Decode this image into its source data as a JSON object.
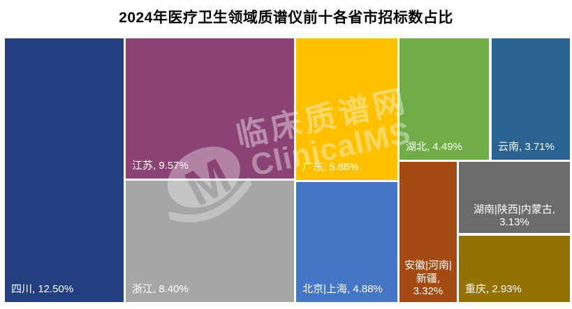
{
  "title": "2024年医疗卫生领域质谱仪前十各省市招标数占比",
  "watermark": {
    "logo_letter": "M",
    "text_cn": "临床质谱网",
    "text_en": "ClinicalMS"
  },
  "chart_data": {
    "type": "treemap",
    "title": "2024年医疗卫生领域质谱仪前十各省市招标数占比",
    "unit": "%",
    "legend_position": "none",
    "series": [
      {
        "name": "四川",
        "value": 12.5,
        "label": "四川, 12.50%",
        "color": "#224080"
      },
      {
        "name": "江苏",
        "value": 9.57,
        "label": "江苏, 9.57%",
        "color": "#8B4374"
      },
      {
        "name": "浙江",
        "value": 8.4,
        "label": "浙江, 8.40%",
        "color": "#A6A6A6"
      },
      {
        "name": "广东",
        "value": 5.86,
        "label": "广东, 5.86%",
        "color": "#FFC000"
      },
      {
        "name": "北京|上海",
        "value": 4.88,
        "label": "北京|上海, 4.88%",
        "color": "#4576C5"
      },
      {
        "name": "湖北",
        "value": 4.49,
        "label": "湖北, 4.49%",
        "color": "#70AD47"
      },
      {
        "name": "云南",
        "value": 3.71,
        "label": "云南, 3.71%",
        "color": "#2A6392"
      },
      {
        "name": "安徽|河南|新疆",
        "value": 3.32,
        "label": "安徽|河南|新疆, 3.32%",
        "color": "#A24A12"
      },
      {
        "name": "湖南|陕西|内蒙古",
        "value": 3.13,
        "label": "湖南|陕西|内蒙古, 3.13%",
        "color": "#6B6B6B"
      },
      {
        "name": "重庆",
        "value": 2.93,
        "label": "重庆, 2.93%",
        "color": "#947100"
      }
    ]
  }
}
